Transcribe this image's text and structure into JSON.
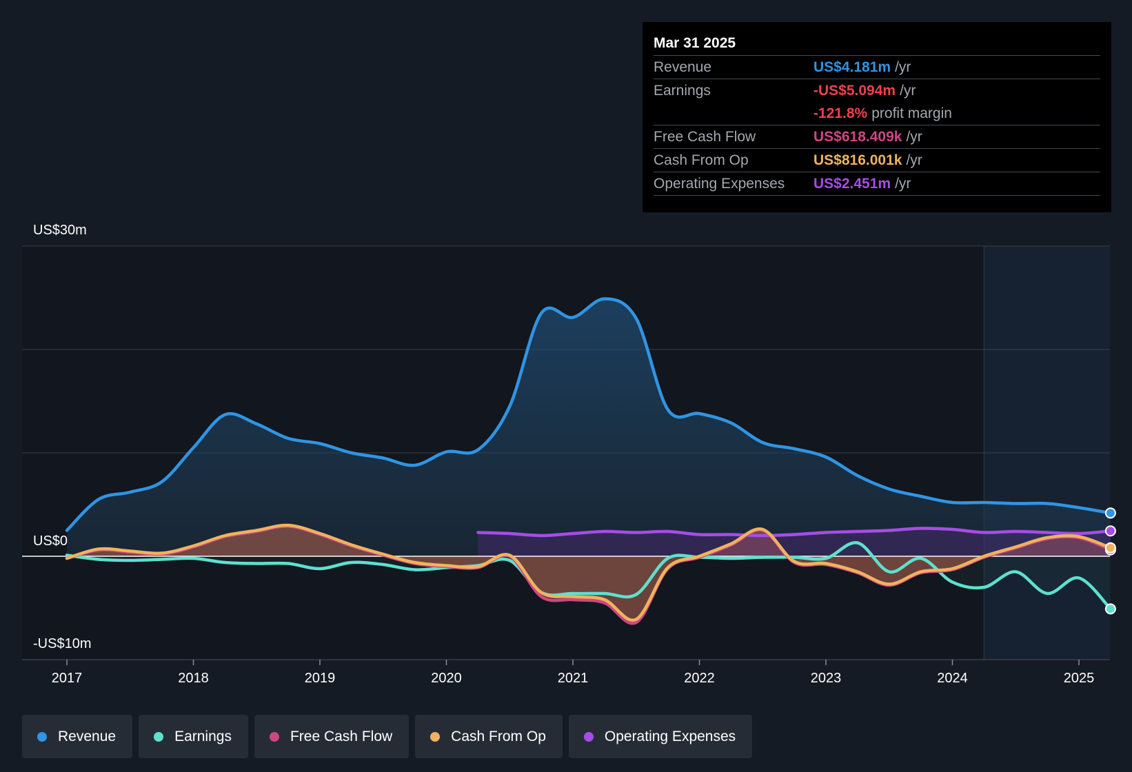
{
  "colors": {
    "revenue": "#2f95e4",
    "earnings": "#5ee0cf",
    "free_cash_flow": "#cf4684",
    "cash_from_op": "#efb35d",
    "operating_expenses": "#a64de6",
    "earnings_text": "#f0404d"
  },
  "tooltip": {
    "date": "Mar 31 2025",
    "rows": [
      {
        "label": "Revenue",
        "value": "US$4.181m",
        "unit": "/yr"
      },
      {
        "label": "Earnings",
        "value": "-US$5.094m",
        "unit": "/yr"
      },
      {
        "label": "",
        "value": "-121.8%",
        "unit": "profit margin"
      },
      {
        "label": "Free Cash Flow",
        "value": "US$618.409k",
        "unit": "/yr"
      },
      {
        "label": "Cash From Op",
        "value": "US$816.001k",
        "unit": "/yr"
      },
      {
        "label": "Operating Expenses",
        "value": "US$2.451m",
        "unit": "/yr"
      }
    ]
  },
  "legend": [
    {
      "label": "Revenue"
    },
    {
      "label": "Earnings"
    },
    {
      "label": "Free Cash Flow"
    },
    {
      "label": "Cash From Op"
    },
    {
      "label": "Operating Expenses"
    }
  ],
  "chart_data": {
    "type": "area",
    "title": "",
    "xlabel": "",
    "ylabel": "",
    "y_axis_labels": [
      "US$30m",
      "US$0",
      "-US$10m"
    ],
    "ylim": [
      -10,
      30
    ],
    "xlim": [
      2016.65,
      2025.25
    ],
    "x_ticks": [
      2017,
      2018,
      2019,
      2020,
      2021,
      2022,
      2023,
      2024,
      2025
    ],
    "x_tick_labels": [
      "2017",
      "2018",
      "2019",
      "2020",
      "2021",
      "2022",
      "2023",
      "2024",
      "2025"
    ],
    "forecast_region_start": 2024.25,
    "series": [
      {
        "name": "Revenue",
        "x": [
          2017.0,
          2017.25,
          2017.5,
          2017.75,
          2018.0,
          2018.25,
          2018.5,
          2018.75,
          2019.0,
          2019.25,
          2019.5,
          2019.75,
          2020.0,
          2020.25,
          2020.5,
          2020.75,
          2021.0,
          2021.25,
          2021.5,
          2021.75,
          2022.0,
          2022.25,
          2022.5,
          2022.75,
          2023.0,
          2023.25,
          2023.5,
          2023.75,
          2024.0,
          2024.25,
          2024.5,
          2024.75,
          2025.0,
          2025.25
        ],
        "values": [
          2.5,
          5.5,
          6.2,
          7.2,
          10.5,
          13.7,
          12.8,
          11.4,
          10.9,
          10.0,
          9.5,
          8.8,
          10.1,
          10.3,
          14.5,
          23.5,
          23.1,
          24.9,
          23.0,
          14.2,
          13.8,
          12.9,
          11.0,
          10.4,
          9.6,
          7.8,
          6.5,
          5.8,
          5.2,
          5.2,
          5.1,
          5.1,
          4.7,
          4.18
        ]
      },
      {
        "name": "Earnings",
        "x": [
          2017.0,
          2017.25,
          2017.5,
          2017.75,
          2018.0,
          2018.25,
          2018.5,
          2018.75,
          2019.0,
          2019.25,
          2019.5,
          2019.75,
          2020.0,
          2020.25,
          2020.5,
          2020.75,
          2021.0,
          2021.25,
          2021.5,
          2021.75,
          2022.0,
          2022.25,
          2022.5,
          2022.75,
          2023.0,
          2023.25,
          2023.5,
          2023.75,
          2024.0,
          2024.25,
          2024.5,
          2024.75,
          2025.0,
          2025.25
        ],
        "values": [
          0.1,
          -0.3,
          -0.4,
          -0.3,
          -0.2,
          -0.6,
          -0.7,
          -0.7,
          -1.2,
          -0.6,
          -0.8,
          -1.3,
          -1.1,
          -0.9,
          -0.4,
          -3.5,
          -3.6,
          -3.6,
          -3.7,
          -0.2,
          -0.1,
          -0.2,
          -0.1,
          -0.1,
          -0.2,
          1.3,
          -1.5,
          -0.2,
          -2.5,
          -3.0,
          -1.5,
          -3.6,
          -2.1,
          -5.09
        ]
      },
      {
        "name": "Free Cash Flow",
        "x": [
          2017.0,
          2017.25,
          2017.5,
          2017.75,
          2018.0,
          2018.25,
          2018.5,
          2018.75,
          2019.0,
          2019.25,
          2019.5,
          2019.75,
          2020.0,
          2020.25,
          2020.5,
          2020.75,
          2021.0,
          2021.25,
          2021.5,
          2021.75,
          2022.0,
          2022.25,
          2022.5,
          2022.75,
          2023.0,
          2023.25,
          2023.5,
          2023.75,
          2024.0,
          2024.25,
          2024.5,
          2024.75,
          2025.0,
          2025.25
        ],
        "values": [
          -0.2,
          0.6,
          0.4,
          0.2,
          0.9,
          1.9,
          2.4,
          2.9,
          2.1,
          1.0,
          0.1,
          -0.7,
          -1.0,
          -1.1,
          0.0,
          -3.9,
          -4.2,
          -4.5,
          -6.4,
          -1.2,
          -0.1,
          1.1,
          2.5,
          -0.6,
          -0.8,
          -1.6,
          -2.8,
          -1.6,
          -1.3,
          -0.1,
          0.8,
          1.7,
          1.8,
          0.62
        ]
      },
      {
        "name": "Cash From Op",
        "x": [
          2017.0,
          2017.25,
          2017.5,
          2017.75,
          2018.0,
          2018.25,
          2018.5,
          2018.75,
          2019.0,
          2019.25,
          2019.5,
          2019.75,
          2020.0,
          2020.25,
          2020.5,
          2020.75,
          2021.0,
          2021.25,
          2021.5,
          2021.75,
          2022.0,
          2022.25,
          2022.5,
          2022.75,
          2023.0,
          2023.25,
          2023.5,
          2023.75,
          2024.0,
          2024.25,
          2024.5,
          2024.75,
          2025.0,
          2025.25
        ],
        "values": [
          -0.2,
          0.7,
          0.5,
          0.3,
          1.0,
          2.0,
          2.5,
          3.0,
          2.2,
          1.1,
          0.2,
          -0.6,
          -0.9,
          -1.0,
          0.1,
          -3.5,
          -3.9,
          -4.2,
          -6.1,
          -1.1,
          0.0,
          1.2,
          2.6,
          -0.5,
          -0.7,
          -1.5,
          -2.7,
          -1.5,
          -1.2,
          0.0,
          0.9,
          1.8,
          1.9,
          0.82
        ]
      },
      {
        "name": "Operating Expenses",
        "x": [
          2020.25,
          2020.5,
          2020.75,
          2021.0,
          2021.25,
          2021.5,
          2021.75,
          2022.0,
          2022.25,
          2022.5,
          2022.75,
          2023.0,
          2023.25,
          2023.5,
          2023.75,
          2024.0,
          2024.25,
          2024.5,
          2024.75,
          2025.0,
          2025.25
        ],
        "values": [
          2.3,
          2.2,
          2.0,
          2.2,
          2.4,
          2.3,
          2.4,
          2.1,
          2.1,
          2.0,
          2.1,
          2.3,
          2.4,
          2.5,
          2.7,
          2.6,
          2.3,
          2.4,
          2.3,
          2.2,
          2.45
        ]
      }
    ]
  }
}
